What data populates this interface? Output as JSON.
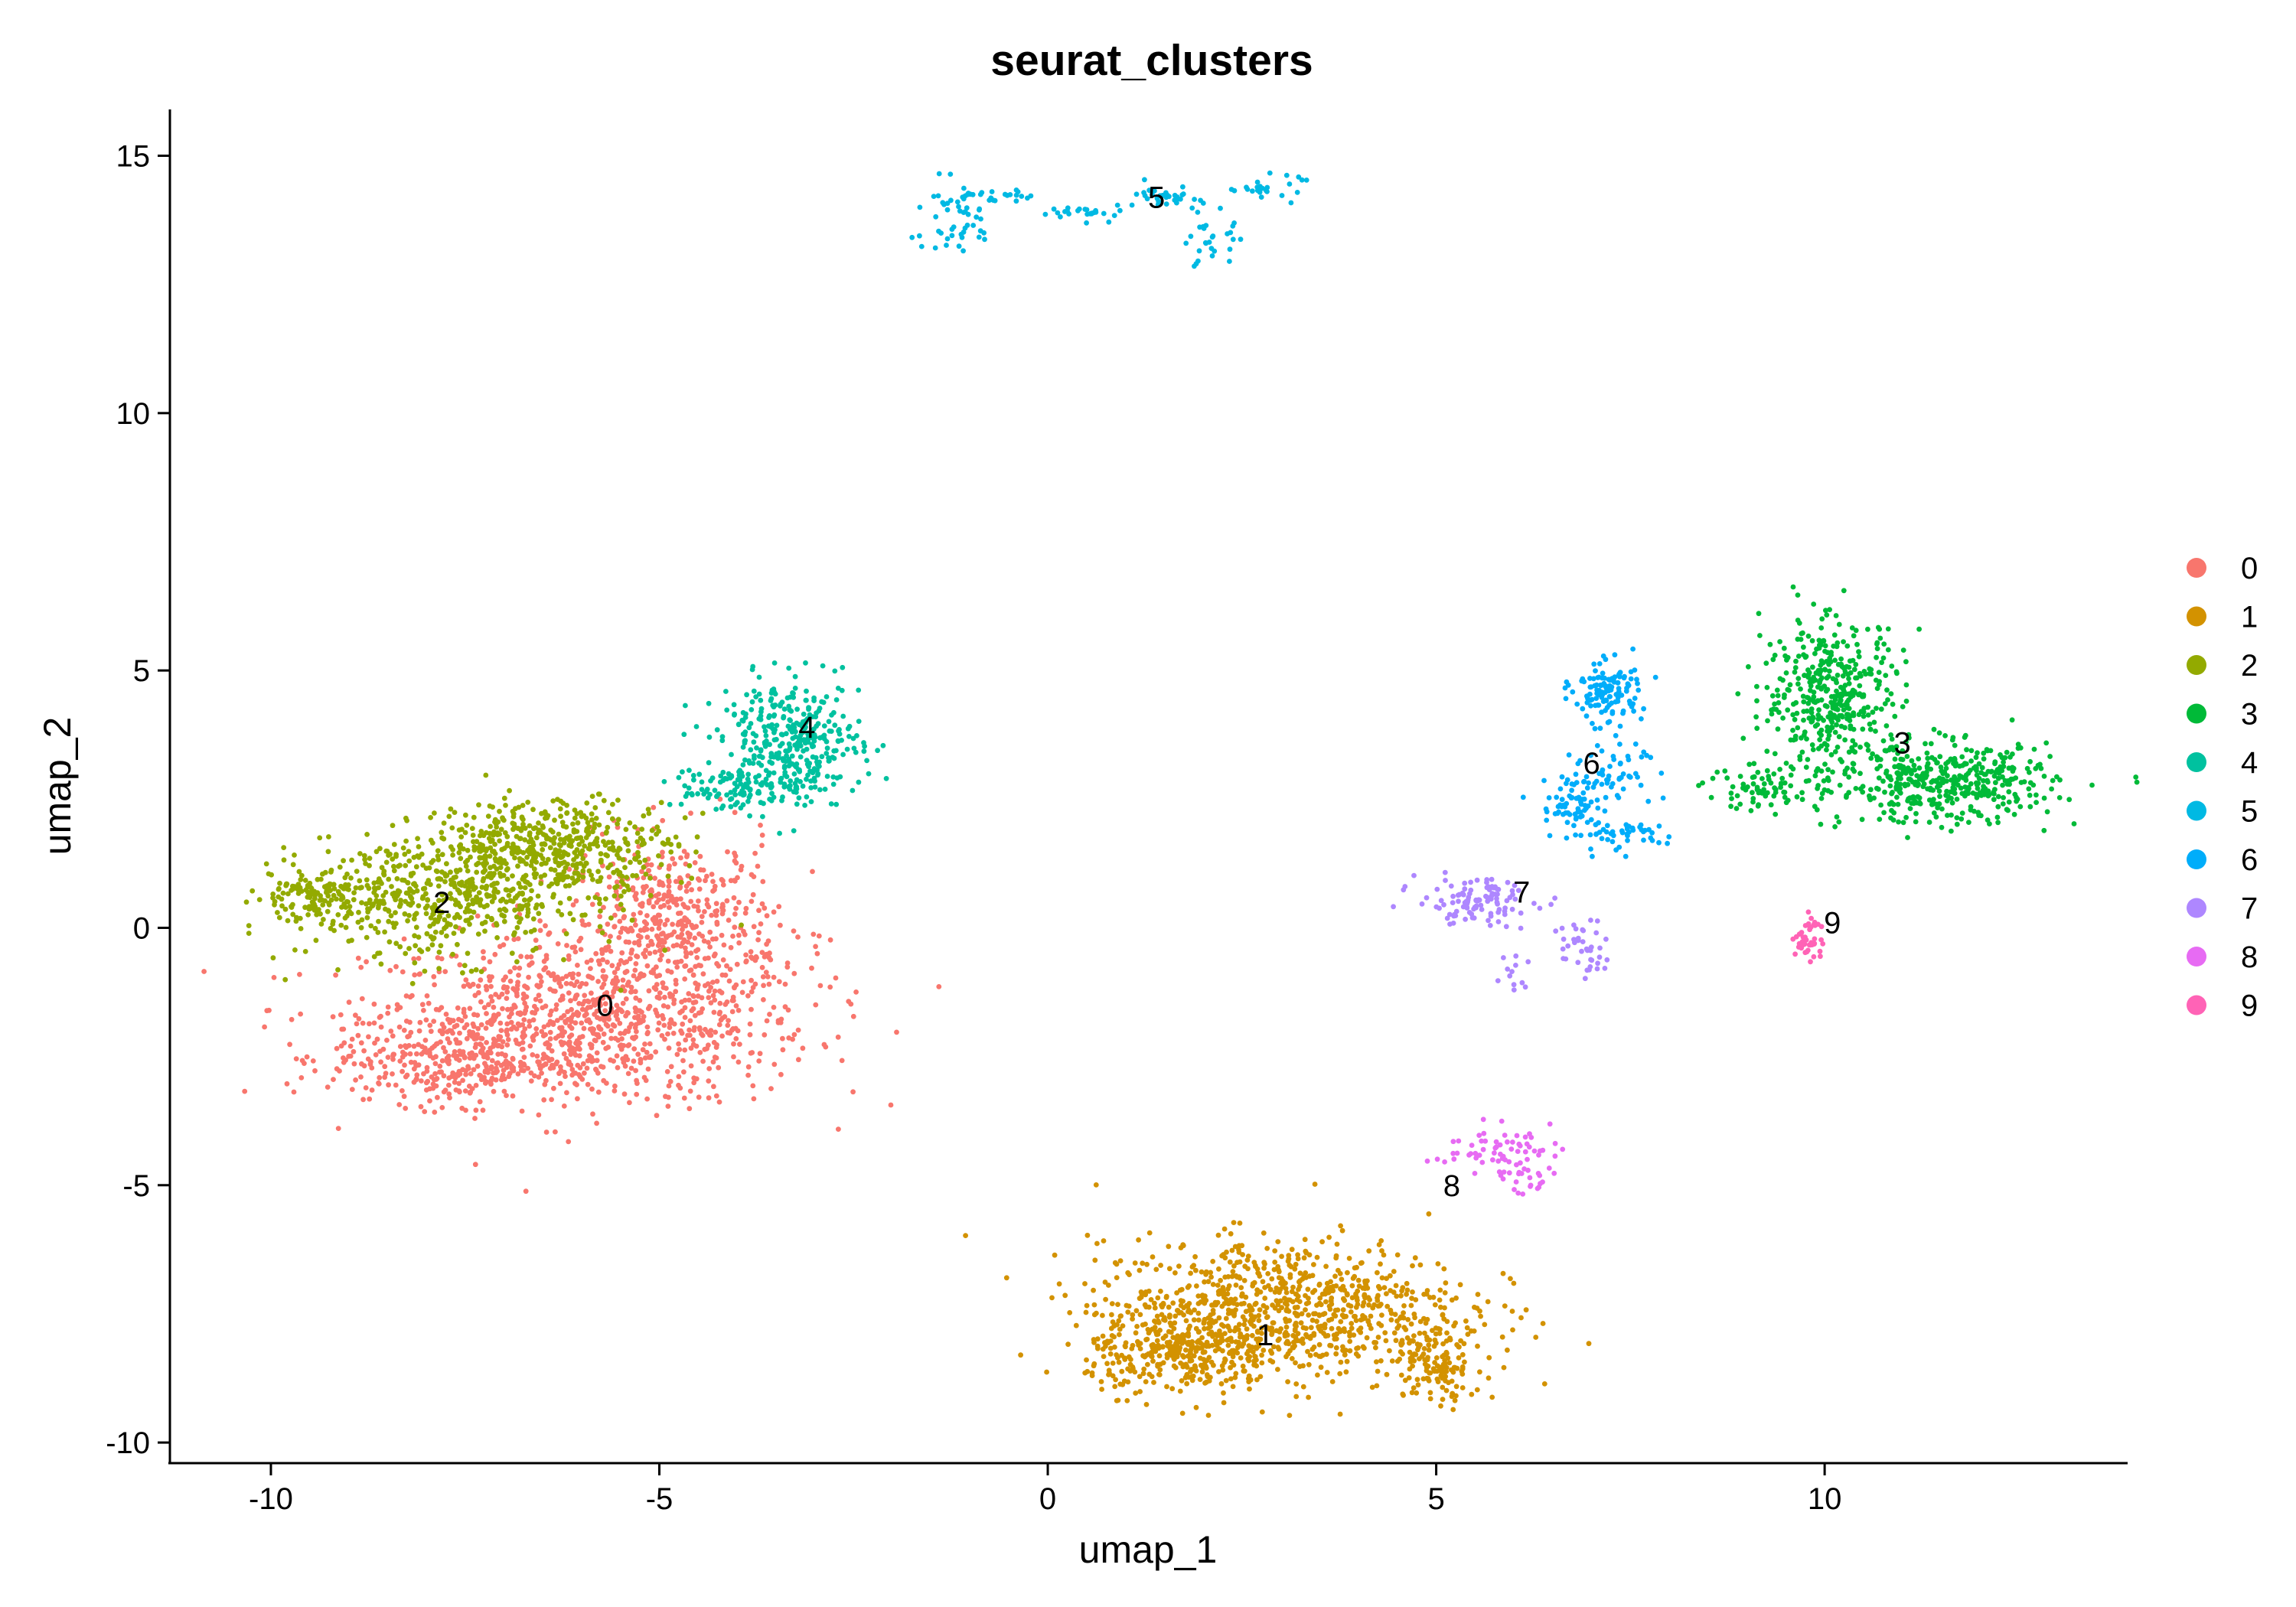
{
  "chart_data": {
    "type": "scatter",
    "title": "seurat_clusters",
    "xlabel": "umap_1",
    "ylabel": "umap_2",
    "xlim": [
      -11.3,
      13.9
    ],
    "ylim": [
      -10.4,
      15.9
    ],
    "xticks": [
      -10,
      -5,
      0,
      5,
      10
    ],
    "yticks": [
      -10,
      -5,
      0,
      5,
      10,
      15
    ],
    "grid": false,
    "legend_position": "right",
    "clusters": [
      {
        "name": "0",
        "color": "#F8766D",
        "label_pos": [
          -5.7,
          -1.5
        ],
        "blobs": [
          {
            "c": [
              -5.9,
              -1.8
            ],
            "sx": 1.9,
            "sy": 1.1,
            "n": 900
          },
          {
            "c": [
              -4.8,
              0.1
            ],
            "sx": 0.9,
            "sy": 1.1,
            "n": 450
          },
          {
            "c": [
              -7.6,
              -2.5
            ],
            "sx": 1.1,
            "sy": 0.6,
            "n": 350
          }
        ]
      },
      {
        "name": "1",
        "color": "#D39200",
        "label_pos": [
          2.8,
          -7.9
        ],
        "blobs": [
          {
            "c": [
              3.0,
              -7.4
            ],
            "sx": 1.6,
            "sy": 0.9,
            "n": 900
          },
          {
            "c": [
              1.7,
              -8.3
            ],
            "sx": 0.8,
            "sy": 0.5,
            "n": 300
          },
          {
            "c": [
              5.0,
              -8.5
            ],
            "sx": 0.4,
            "sy": 0.5,
            "n": 120
          }
        ]
      },
      {
        "name": "2",
        "color": "#93AA00",
        "label_pos": [
          -7.8,
          0.5
        ],
        "blobs": [
          {
            "c": [
              -7.8,
              0.6
            ],
            "sx": 1.2,
            "sy": 0.8,
            "n": 550
          },
          {
            "c": [
              -6.3,
              1.6
            ],
            "sx": 1.0,
            "sy": 0.6,
            "n": 450
          },
          {
            "c": [
              -9.5,
              0.6
            ],
            "sx": 0.5,
            "sy": 0.3,
            "n": 120
          }
        ]
      },
      {
        "name": "3",
        "color": "#00BA38",
        "label_pos": [
          11.0,
          3.6
        ],
        "blobs": [
          {
            "c": [
              10.1,
              4.5
            ],
            "sx": 0.6,
            "sy": 1.0,
            "n": 420
          },
          {
            "c": [
              11.6,
              2.8
            ],
            "sx": 0.9,
            "sy": 0.5,
            "n": 420
          },
          {
            "c": [
              9.3,
              2.7
            ],
            "sx": 0.6,
            "sy": 0.3,
            "n": 80
          }
        ]
      },
      {
        "name": "4",
        "color": "#00C19F",
        "label_pos": [
          -3.1,
          3.9
        ],
        "blobs": [
          {
            "c": [
              -3.3,
              3.6
            ],
            "sx": 0.6,
            "sy": 0.8,
            "n": 380
          },
          {
            "c": [
              -4.2,
              2.7
            ],
            "sx": 0.5,
            "sy": 0.3,
            "n": 80
          }
        ]
      },
      {
        "name": "5",
        "color": "#00B9E3",
        "label_pos": [
          1.4,
          14.2
        ],
        "blobs": [
          {
            "c": [
              -1.2,
              13.8
            ],
            "sx": 0.4,
            "sy": 0.5,
            "n": 50
          },
          {
            "c": [
              -0.7,
              14.2
            ],
            "sx": 0.3,
            "sy": 0.1,
            "n": 20
          },
          {
            "c": [
              0.6,
              13.9
            ],
            "sx": 0.4,
            "sy": 0.1,
            "n": 25
          },
          {
            "c": [
              1.6,
              14.2
            ],
            "sx": 0.3,
            "sy": 0.15,
            "n": 30
          },
          {
            "c": [
              2.1,
              13.3
            ],
            "sx": 0.2,
            "sy": 0.4,
            "n": 30
          },
          {
            "c": [
              2.8,
              14.4
            ],
            "sx": 0.3,
            "sy": 0.15,
            "n": 25
          }
        ]
      },
      {
        "name": "6",
        "color": "#00ADFA",
        "label_pos": [
          7.0,
          3.2
        ],
        "blobs": [
          {
            "c": [
              7.2,
              4.6
            ],
            "sx": 0.3,
            "sy": 0.4,
            "n": 120
          },
          {
            "c": [
              6.8,
              2.4
            ],
            "sx": 0.3,
            "sy": 0.5,
            "n": 90
          },
          {
            "c": [
              7.4,
              3.2
            ],
            "sx": 0.3,
            "sy": 0.4,
            "n": 40
          },
          {
            "c": [
              7.5,
              1.8
            ],
            "sx": 0.5,
            "sy": 0.2,
            "n": 40
          }
        ]
      },
      {
        "name": "7",
        "color": "#AE87FF",
        "label_pos": [
          6.1,
          0.7
        ],
        "blobs": [
          {
            "c": [
              5.5,
              0.5
            ],
            "sx": 0.5,
            "sy": 0.3,
            "n": 110
          },
          {
            "c": [
              6.9,
              -0.4
            ],
            "sx": 0.2,
            "sy": 0.4,
            "n": 40
          },
          {
            "c": [
              6.0,
              -0.9
            ],
            "sx": 0.15,
            "sy": 0.25,
            "n": 12
          }
        ]
      },
      {
        "name": "8",
        "color": "#E76BF3",
        "label_pos": [
          5.2,
          -5.0
        ],
        "blobs": [
          {
            "c": [
              5.7,
              -4.3
            ],
            "sx": 0.5,
            "sy": 0.3,
            "n": 60
          },
          {
            "c": [
              6.2,
              -4.8
            ],
            "sx": 0.2,
            "sy": 0.3,
            "n": 25
          }
        ]
      },
      {
        "name": "9",
        "color": "#FF63B6",
        "label_pos": [
          10.1,
          0.1
        ],
        "blobs": [
          {
            "c": [
              9.8,
              -0.2
            ],
            "sx": 0.12,
            "sy": 0.35,
            "n": 45
          }
        ]
      }
    ]
  }
}
